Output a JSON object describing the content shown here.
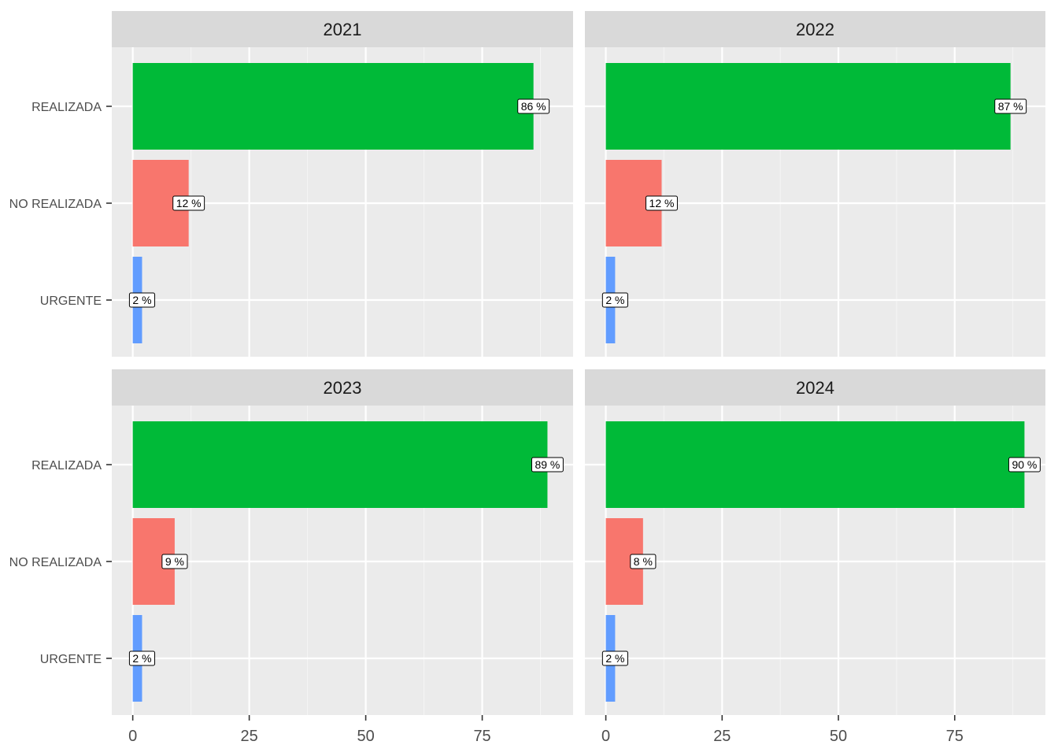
{
  "chart_data": {
    "type": "bar",
    "orientation": "horizontal",
    "facet_by": "year",
    "categories": [
      "REALIZADA",
      "NO REALIZADA",
      "URGENTE"
    ],
    "category_colors": {
      "REALIZADA": "#00BA38",
      "NO REALIZADA": "#F8766D",
      "URGENTE": "#619CFF"
    },
    "value_axis": {
      "ticks": [
        0,
        25,
        50,
        75
      ],
      "range": [
        -4.5,
        94.5
      ]
    },
    "panels": [
      {
        "title": "2021",
        "values": [
          86,
          12,
          2
        ],
        "labels": [
          "86 %",
          "12 %",
          "2 %"
        ]
      },
      {
        "title": "2022",
        "values": [
          87,
          12,
          2
        ],
        "labels": [
          "87 %",
          "12 %",
          "2 %"
        ]
      },
      {
        "title": "2023",
        "values": [
          89,
          9,
          2
        ],
        "labels": [
          "89 %",
          "9 %",
          "2 %"
        ]
      },
      {
        "title": "2024",
        "values": [
          90,
          8,
          2
        ],
        "labels": [
          "90 %",
          "8 %",
          "2 %"
        ]
      }
    ],
    "colors": {
      "panel_bg": "#EBEBEB",
      "strip_bg": "#D9D9D9",
      "grid_major": "#FFFFFF",
      "grid_minor": "#F5F5F5",
      "tick": "#333333",
      "label_bg": "#FFFFFF",
      "label_border": "#000000"
    }
  }
}
